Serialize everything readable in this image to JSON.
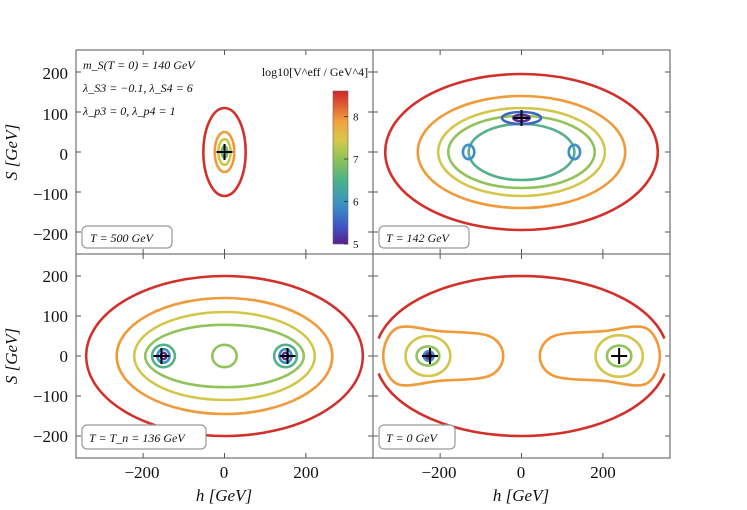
{
  "chart_data": {
    "type": "contour",
    "xlabel": "h [GeV]",
    "ylabel": "S [GeV]",
    "xlim": [
      -365,
      365
    ],
    "ylim": [
      -255,
      255
    ],
    "xticks": [
      -200,
      0,
      200
    ],
    "yticks": [
      -200,
      -100,
      0,
      100,
      200
    ],
    "xtick_labels": [
      "−200",
      "0",
      "200"
    ],
    "ytick_labels": [
      "−200",
      "−100",
      "0",
      "100",
      "200"
    ],
    "params": {
      "line1": "m_S(T = 0) = 140 GeV",
      "line2": "λ_S3 = −0.1, λ_S4 = 6",
      "line3": "λ_p3 = 0, λ_p4 = 1"
    },
    "colorbar": {
      "label": "log10[V^eff / GeV^4]",
      "min": 5,
      "max": 8.6,
      "ticks": [
        5,
        6,
        7,
        8
      ],
      "tick_labels": [
        "5",
        "6",
        "7",
        "8"
      ],
      "colormap": [
        "#5a1f8f",
        "#3d58c4",
        "#3b8fc7",
        "#46b08f",
        "#8cc25a",
        "#d7c94a",
        "#f2a23c",
        "#e06133",
        "#d2242b"
      ]
    },
    "panels": [
      {
        "title": "T = 500 GeV",
        "minima": [
          [
            0,
            0
          ]
        ],
        "contours": [
          {
            "level": 8.3,
            "color": "#d2302b",
            "shape": "ellipse",
            "cx": 0,
            "cy": 0,
            "rx": 52,
            "ry": 110
          },
          {
            "level": 7.9,
            "color": "#f09a3a",
            "shape": "ellipse",
            "cx": 0,
            "cy": 0,
            "rx": 24,
            "ry": 50
          },
          {
            "level": 7.5,
            "color": "#cfc34a",
            "shape": "ellipse",
            "cx": 0,
            "cy": 0,
            "rx": 15,
            "ry": 32
          },
          {
            "level": 7.0,
            "color": "#6ab97c",
            "shape": "ellipse",
            "cx": 0,
            "cy": 0,
            "rx": 7,
            "ry": 14
          }
        ]
      },
      {
        "title": "T = 142 GeV",
        "minima": [
          [
            0,
            85
          ]
        ],
        "contours": [
          {
            "level": 8.3,
            "color": "#d2302b",
            "shape": "ellipse",
            "cx": 0,
            "cy": 0,
            "rx": 335,
            "ry": 195
          },
          {
            "level": 8.0,
            "color": "#f09a3a",
            "shape": "ellipse",
            "cx": 0,
            "cy": 0,
            "rx": 255,
            "ry": 140
          },
          {
            "level": 7.7,
            "color": "#d3c64a",
            "shape": "ellipse",
            "cx": 0,
            "cy": 0,
            "rx": 205,
            "ry": 110
          },
          {
            "level": 7.4,
            "color": "#92c35a",
            "shape": "ellipse",
            "cx": 0,
            "cy": 0,
            "rx": 180,
            "ry": 90
          },
          {
            "level": 7.1,
            "color": "#55b08c",
            "shape": "ellipse",
            "cx": 0,
            "cy": 0,
            "rx": 130,
            "ry": 70
          },
          {
            "level": 6.9,
            "color": "#3f8fc5",
            "shape": "ellipse",
            "cx": -130,
            "cy": 0,
            "rx": 14,
            "ry": 18
          },
          {
            "level": 6.9,
            "color": "#3f8fc5",
            "shape": "ellipse",
            "cx": 130,
            "cy": 0,
            "rx": 14,
            "ry": 18
          },
          {
            "level": 6.6,
            "color": "#3e66c0",
            "shape": "ellipse",
            "cx": 0,
            "cy": 85,
            "rx": 48,
            "ry": 15
          },
          {
            "level": 6.0,
            "color": "#5a2b9a",
            "shape": "ellipse",
            "cx": 0,
            "cy": 85,
            "rx": 20,
            "ry": 8
          }
        ]
      },
      {
        "title": "T = T_n = 136 GeV",
        "minima": [
          [
            -155,
            0
          ],
          [
            155,
            0
          ]
        ],
        "contours": [
          {
            "level": 8.3,
            "color": "#d2302b",
            "shape": "ellipse",
            "cx": 0,
            "cy": 0,
            "rx": 340,
            "ry": 200
          },
          {
            "level": 8.0,
            "color": "#f09a3a",
            "shape": "ellipse",
            "cx": 0,
            "cy": 0,
            "rx": 265,
            "ry": 145
          },
          {
            "level": 7.7,
            "color": "#d3c64a",
            "shape": "ellipse",
            "cx": 0,
            "cy": 0,
            "rx": 222,
            "ry": 110
          },
          {
            "level": 7.4,
            "color": "#92c35a",
            "shape": "ellipse",
            "cx": 0,
            "cy": 0,
            "rx": 195,
            "ry": 78
          },
          {
            "level": 7.4,
            "color": "#92c35a",
            "shape": "ellipse",
            "cx": 0,
            "cy": 0,
            "rx": 30,
            "ry": 28
          },
          {
            "level": 7.1,
            "color": "#55b08c",
            "shape": "ellipse",
            "cx": -150,
            "cy": 0,
            "rx": 28,
            "ry": 28
          },
          {
            "level": 7.1,
            "color": "#55b08c",
            "shape": "ellipse",
            "cx": 150,
            "cy": 0,
            "rx": 28,
            "ry": 28
          },
          {
            "level": 6.8,
            "color": "#3f8fc5",
            "shape": "ellipse",
            "cx": -150,
            "cy": 0,
            "rx": 15,
            "ry": 17
          },
          {
            "level": 6.8,
            "color": "#3f8fc5",
            "shape": "ellipse",
            "cx": 150,
            "cy": 0,
            "rx": 15,
            "ry": 17
          },
          {
            "level": 6.3,
            "color": "#5a2b9a",
            "shape": "ellipse",
            "cx": -150,
            "cy": 0,
            "rx": 7,
            "ry": 8
          },
          {
            "level": 6.3,
            "color": "#5a2b9a",
            "shape": "ellipse",
            "cx": 150,
            "cy": 0,
            "rx": 7,
            "ry": 8
          }
        ]
      },
      {
        "title": "T = 0 GeV",
        "minima": [
          [
            -225,
            0
          ],
          [
            240,
            0
          ]
        ],
        "contours": [
          {
            "level": 8.3,
            "color": "#d2302b",
            "shape": "arc-top",
            "cx": 0,
            "cy": 0,
            "rx": 360,
            "ry": 200
          },
          {
            "level": 8.3,
            "color": "#d2302b",
            "shape": "arc-bottom",
            "cx": 0,
            "cy": 0,
            "rx": 360,
            "ry": 200
          },
          {
            "level": 8.0,
            "color": "#f09a3a",
            "shape": "bean-left"
          },
          {
            "level": 8.0,
            "color": "#f09a3a",
            "shape": "bean-right"
          },
          {
            "level": 7.7,
            "color": "#d3c64a",
            "shape": "ellipse",
            "cx": -230,
            "cy": 0,
            "rx": 55,
            "ry": 50
          },
          {
            "level": 7.7,
            "color": "#d3c64a",
            "shape": "ellipse",
            "cx": 240,
            "cy": 0,
            "rx": 58,
            "ry": 52
          },
          {
            "level": 7.4,
            "color": "#92c35a",
            "shape": "ellipse",
            "cx": -230,
            "cy": 0,
            "rx": 28,
            "ry": 24
          },
          {
            "level": 7.4,
            "color": "#92c35a",
            "shape": "ellipse",
            "cx": 240,
            "cy": 0,
            "rx": 30,
            "ry": 26
          },
          {
            "level": 7.0,
            "color": "#3f8fc5",
            "shape": "ellipse",
            "cx": -228,
            "cy": 0,
            "rx": 12,
            "ry": 12
          },
          {
            "level": 6.4,
            "color": "#5a2b9a",
            "shape": "ellipse",
            "cx": -228,
            "cy": 0,
            "rx": 6,
            "ry": 6
          }
        ]
      }
    ]
  }
}
